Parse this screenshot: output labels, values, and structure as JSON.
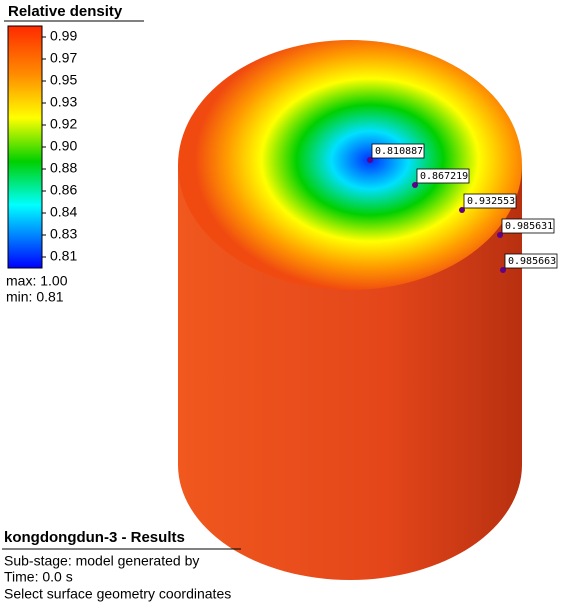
{
  "legend": {
    "title": "Relative density",
    "ticks": [
      "0.99",
      "0.97",
      "0.95",
      "0.93",
      "0.92",
      "0.90",
      "0.88",
      "0.86",
      "0.84",
      "0.83",
      "0.81"
    ],
    "max": "max: 1.00",
    "min": "min:  0.81"
  },
  "probes": [
    "0.810887",
    "0.867219",
    "0.932553",
    "0.985631",
    "0.985663"
  ],
  "footer": {
    "title": "kongdongdun-3 - Results",
    "lines": [
      "Sub-stage: model generated by",
      "Time: 0.0 s",
      "Select surface geometry coordinates"
    ]
  }
}
